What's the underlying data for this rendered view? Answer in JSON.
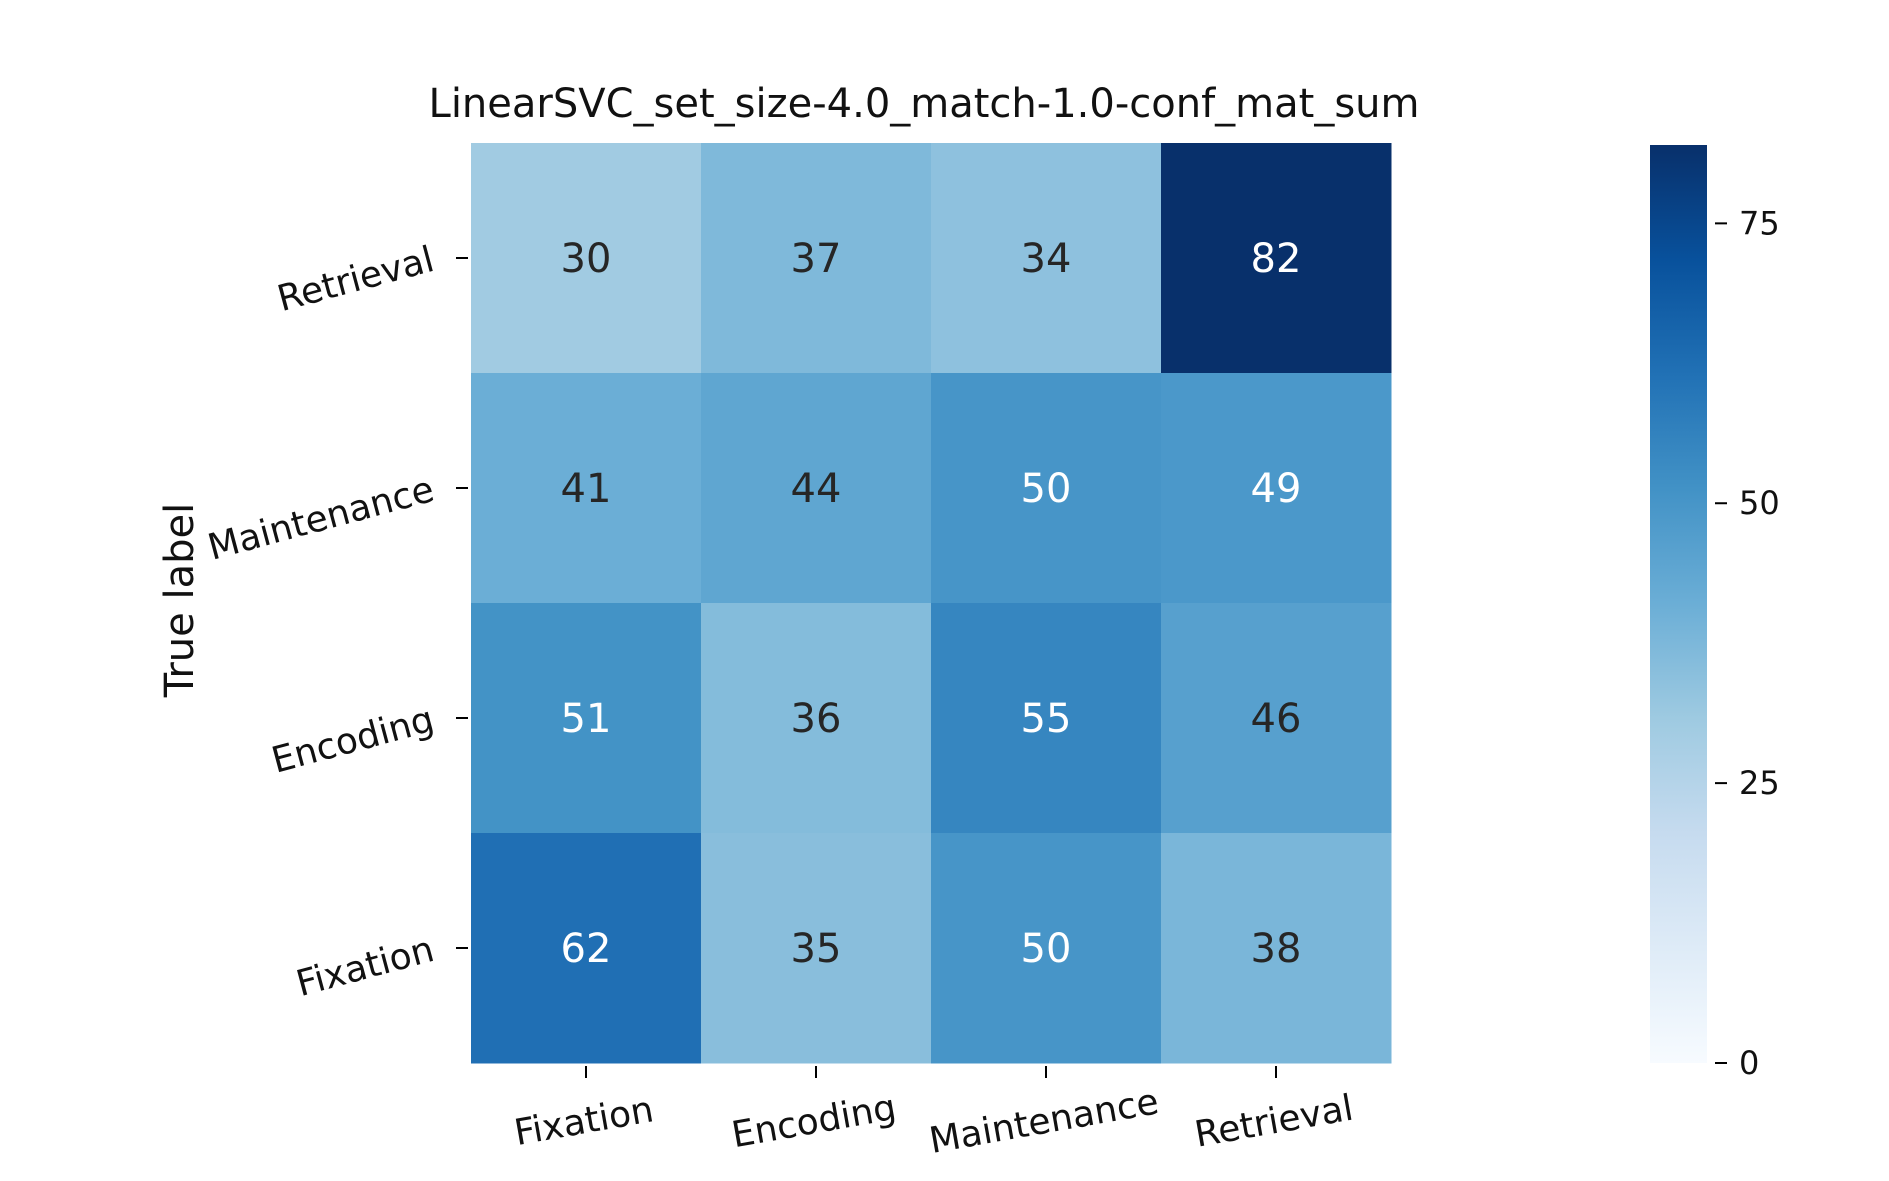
{
  "chart_data": {
    "type": "heatmap",
    "title": "LinearSVC_set_size-4.0_match-1.0-conf_mat_sum",
    "xlabel": "",
    "ylabel": "True label",
    "x_categories": [
      "Fixation",
      "Encoding",
      "Maintenance",
      "Retrieval"
    ],
    "y_categories": [
      "Retrieval",
      "Maintenance",
      "Encoding",
      "Fixation"
    ],
    "values": [
      [
        30,
        37,
        34,
        82
      ],
      [
        41,
        44,
        50,
        49
      ],
      [
        51,
        36,
        55,
        46
      ],
      [
        62,
        35,
        50,
        38
      ]
    ],
    "colorbar": {
      "range": [
        0,
        82
      ],
      "ticks": [
        0,
        25,
        50,
        75
      ],
      "colormap": "Blues",
      "colors": [
        "#f7fbff",
        "#deebf7",
        "#c6dbef",
        "#9ecae1",
        "#6baed6",
        "#4292c6",
        "#2171b5",
        "#08519c",
        "#08306b"
      ]
    },
    "grid": false
  }
}
